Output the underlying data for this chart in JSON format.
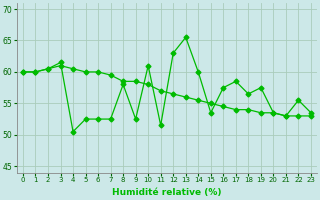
{
  "title": "",
  "xlabel": "Humidité relative (%)",
  "ylabel": "",
  "background_color": "#cce8e8",
  "grid_color": "#aaccbb",
  "line_color": "#00bb00",
  "xlim": [
    -0.5,
    23.5
  ],
  "ylim": [
    44,
    71
  ],
  "yticks": [
    45,
    50,
    55,
    60,
    65,
    70
  ],
  "xticks": [
    0,
    1,
    2,
    3,
    4,
    5,
    6,
    7,
    8,
    9,
    10,
    11,
    12,
    13,
    14,
    15,
    16,
    17,
    18,
    19,
    20,
    21,
    22,
    23
  ],
  "series1": [
    60.0,
    60.0,
    60.5,
    61.5,
    50.5,
    52.5,
    52.5,
    52.5,
    58.0,
    52.5,
    61.0,
    51.5,
    63.0,
    65.5,
    60.0,
    53.5,
    57.5,
    58.5,
    56.5,
    57.5,
    53.5,
    53.0,
    55.5,
    53.5
  ],
  "series2": [
    60.0,
    60.0,
    60.5,
    61.0,
    60.5,
    60.0,
    60.0,
    59.5,
    58.5,
    58.5,
    58.0,
    57.0,
    56.5,
    56.0,
    55.5,
    55.0,
    54.5,
    54.0,
    54.0,
    53.5,
    53.5,
    53.0,
    53.0,
    53.0
  ],
  "marker": "D",
  "markersize": 2.5,
  "linewidth": 0.9
}
